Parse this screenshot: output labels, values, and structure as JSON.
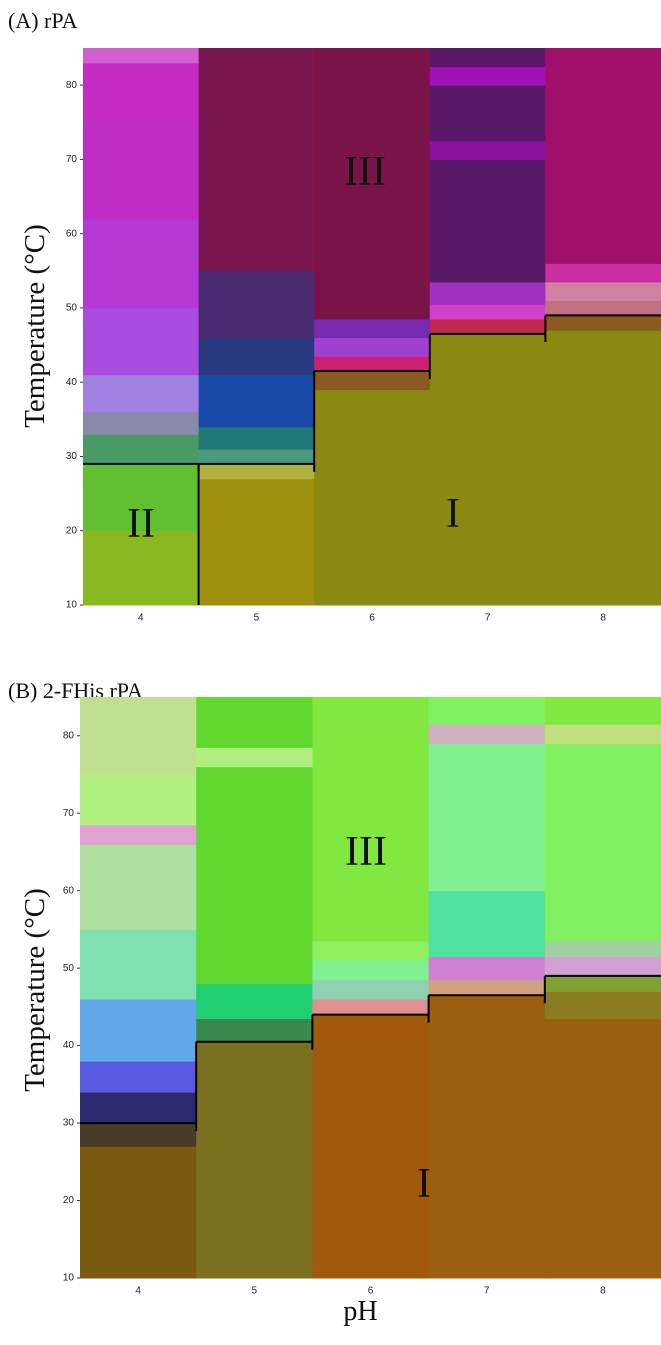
{
  "chart_data": [
    {
      "type": "heatmap",
      "title": "(A) rPA",
      "ylabel": "Temperature (°C)",
      "categories": [
        "4",
        "5",
        "6",
        "7",
        "8"
      ],
      "ylim": [
        10,
        85
      ],
      "yticks": [
        10,
        20,
        30,
        40,
        50,
        60,
        70,
        80
      ],
      "columns": [
        {
          "stops": [
            10,
            20,
            29,
            33,
            36,
            41,
            50,
            62,
            75,
            83,
            85
          ],
          "colors": [
            "#8ab820",
            "#60c030",
            "#4a9a68",
            "#8a88a8",
            "#a080e0",
            "#a84ce0",
            "#b438d4",
            "#c02cc6",
            "#c42ac4",
            "#d060d0"
          ]
        },
        {
          "stops": [
            10,
            27,
            29,
            31,
            34,
            41,
            46,
            55,
            85
          ],
          "colors": [
            "#a09010",
            "#b0b040",
            "#4a9a80",
            "#207878",
            "#1a4aaa",
            "#2a3a80",
            "#4a2a70",
            "#7a1650"
          ]
        },
        {
          "stops": [
            10,
            39,
            41.5,
            43.5,
            46,
            48.5,
            85
          ],
          "colors": [
            "#8a8a10",
            "#8a5a20",
            "#cc2070",
            "#a040d0",
            "#7a2ab0",
            "#7a1448"
          ]
        },
        {
          "stops": [
            10,
            46.5,
            48.5,
            50.5,
            53.5,
            70,
            72.5,
            80,
            82.5,
            85
          ],
          "colors": [
            "#8a8a10",
            "#c02850",
            "#d040c8",
            "#a030c0",
            "#5a1868",
            "#8a10a0",
            "#5a1868",
            "#a010b8",
            "#5a1868"
          ]
        },
        {
          "stops": [
            10,
            47,
            49,
            51,
            53.5,
            56,
            85
          ],
          "colors": [
            "#8a8a10",
            "#8a5a20",
            "#c07080",
            "#d080a0",
            "#cc30a0",
            "#a0106a"
          ]
        }
      ],
      "boundary": [
        29,
        29,
        41.5,
        46.5,
        49
      ],
      "annotations": [
        "III",
        "II",
        "I"
      ]
    },
    {
      "type": "heatmap",
      "title": "(B) 2-FHis rPA",
      "ylabel": "Temperature (°C)",
      "xlabel": "pH",
      "categories": [
        "4",
        "5",
        "6",
        "7",
        "8"
      ],
      "ylim": [
        10,
        85
      ],
      "yticks": [
        10,
        20,
        30,
        40,
        50,
        60,
        70,
        80
      ],
      "columns": [
        {
          "stops": [
            10,
            27,
            30,
            34,
            38,
            46,
            55,
            66,
            68.5,
            75,
            85
          ],
          "colors": [
            "#7a5a10",
            "#4a3a28",
            "#2a2a70",
            "#5a5ae0",
            "#60a8e8",
            "#80e0b0",
            "#b0e0a0",
            "#e0a0d0",
            "#b0f080",
            "#c0e090"
          ]
        },
        {
          "stops": [
            10,
            40.5,
            43.5,
            48,
            76,
            78.5,
            85
          ],
          "colors": [
            "#7a7020",
            "#3a8a50",
            "#20d070",
            "#60d830",
            "#b0f080",
            "#60d830"
          ]
        },
        {
          "stops": [
            10,
            44,
            46,
            48.5,
            51,
            53.5,
            85
          ],
          "colors": [
            "#a05a0a",
            "#e09090",
            "#90d0b0",
            "#80f090",
            "#90f060",
            "#80e840"
          ]
        },
        {
          "stops": [
            10,
            46.5,
            48.5,
            51.5,
            60,
            79,
            81.5,
            85
          ],
          "colors": [
            "#9a6010",
            "#d0a080",
            "#d080d0",
            "#50e0a0",
            "#80f090",
            "#d0b0c0",
            "#80f060"
          ]
        },
        {
          "stops": [
            10,
            43.5,
            47,
            49,
            51.5,
            53.5,
            79,
            81.5,
            85
          ],
          "colors": [
            "#9a6010",
            "#8a7a20",
            "#80a030",
            "#d0a0d0",
            "#a0d0a0",
            "#80f060",
            "#c0e080",
            "#80e840"
          ]
        }
      ],
      "boundary": [
        30,
        40.5,
        44,
        46.5,
        49
      ],
      "annotations": [
        "III",
        "I"
      ]
    }
  ]
}
